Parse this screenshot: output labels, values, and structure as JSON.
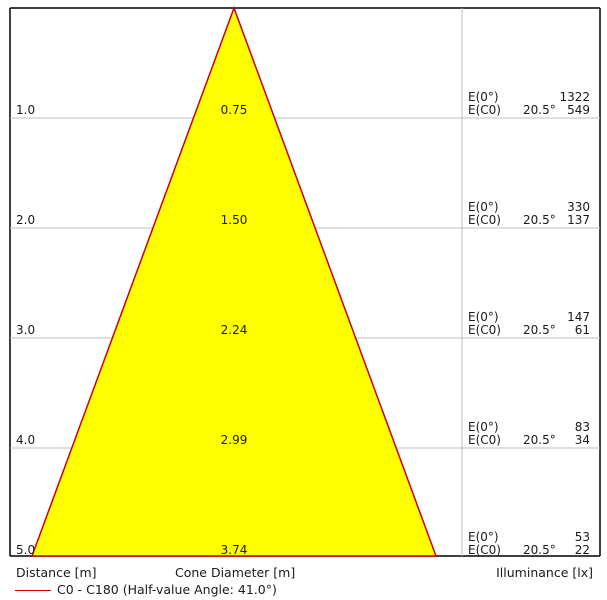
{
  "colors": {
    "cone_fill": "#ffff00",
    "cone_edge": "#cc0000",
    "grid": "#bfbfbf",
    "frame": "#000000"
  },
  "rows": [
    {
      "distance": "1.0",
      "diameter": "0.75",
      "e0_label": "E(0°)",
      "ec0_label": "E(C0)",
      "angle": "20.5°",
      "e0_value": "1322",
      "ec0_value": "549"
    },
    {
      "distance": "2.0",
      "diameter": "1.50",
      "e0_label": "E(0°)",
      "ec0_label": "E(C0)",
      "angle": "20.5°",
      "e0_value": "330",
      "ec0_value": "137"
    },
    {
      "distance": "3.0",
      "diameter": "2.24",
      "e0_label": "E(0°)",
      "ec0_label": "E(C0)",
      "angle": "20.5°",
      "e0_value": "147",
      "ec0_value": "61"
    },
    {
      "distance": "4.0",
      "diameter": "2.99",
      "e0_label": "E(0°)",
      "ec0_label": "E(C0)",
      "angle": "20.5°",
      "e0_value": "83",
      "ec0_value": "34"
    },
    {
      "distance": "5.0",
      "diameter": "3.74",
      "e0_label": "E(0°)",
      "ec0_label": "E(C0)",
      "angle": "20.5°",
      "e0_value": "53",
      "ec0_value": "22"
    }
  ],
  "footer": {
    "distance_label": "Distance [m]",
    "diameter_label": "Cone Diameter [m]",
    "illuminance_label": "Illuminance [lx]",
    "legend": "C0 - C180 (Half-value Angle: 41.0°)"
  }
}
